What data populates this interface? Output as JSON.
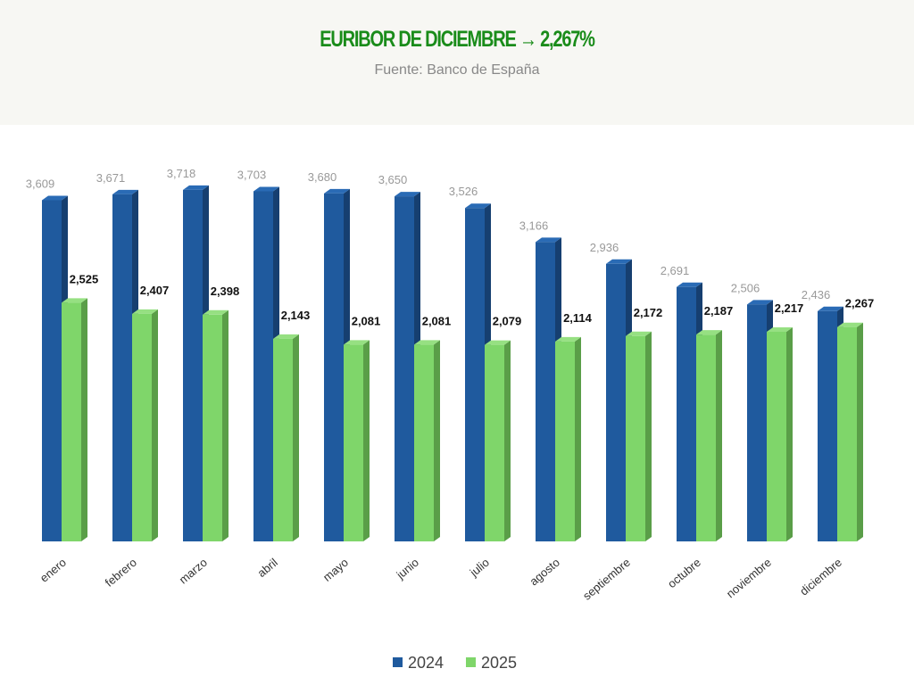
{
  "header": {
    "title": "EURIBOR DE DICIEMBRE → 2,267%",
    "subtitle": "Fuente: Banco de España"
  },
  "chart_data": {
    "type": "bar",
    "title": "EURIBOR DE DICIEMBRE → 2,267%",
    "subtitle": "Fuente: Banco de España",
    "categories": [
      "enero",
      "febrero",
      "marzo",
      "abril",
      "mayo",
      "junio",
      "julio",
      "agosto",
      "septiembre",
      "octubre",
      "noviembre",
      "diciembre"
    ],
    "series": [
      {
        "name": "2024",
        "color": "#1f5a9e",
        "values": [
          3.609,
          3.671,
          3.718,
          3.703,
          3.68,
          3.65,
          3.526,
          3.166,
          2.936,
          2.691,
          2.506,
          2.436
        ],
        "labels": [
          "3,609",
          "3,671",
          "3,718",
          "3,703",
          "3,680",
          "3,650",
          "3,526",
          "3,166",
          "2,936",
          "2,691",
          "2,506",
          "2,436"
        ]
      },
      {
        "name": "2025",
        "color": "#7fd66a",
        "values": [
          2.525,
          2.407,
          2.398,
          2.143,
          2.081,
          2.081,
          2.079,
          2.114,
          2.172,
          2.187,
          2.217,
          2.267
        ],
        "labels": [
          "2,525",
          "2,407",
          "2,398",
          "2,143",
          "2,081",
          "2,081",
          "2,079",
          "2,114",
          "2,172",
          "2,187",
          "2,217",
          "2,267"
        ]
      }
    ],
    "xlabel": "",
    "ylabel": "",
    "ylim": [
      0,
      4
    ],
    "grid": false,
    "legend": "bottom-center"
  }
}
